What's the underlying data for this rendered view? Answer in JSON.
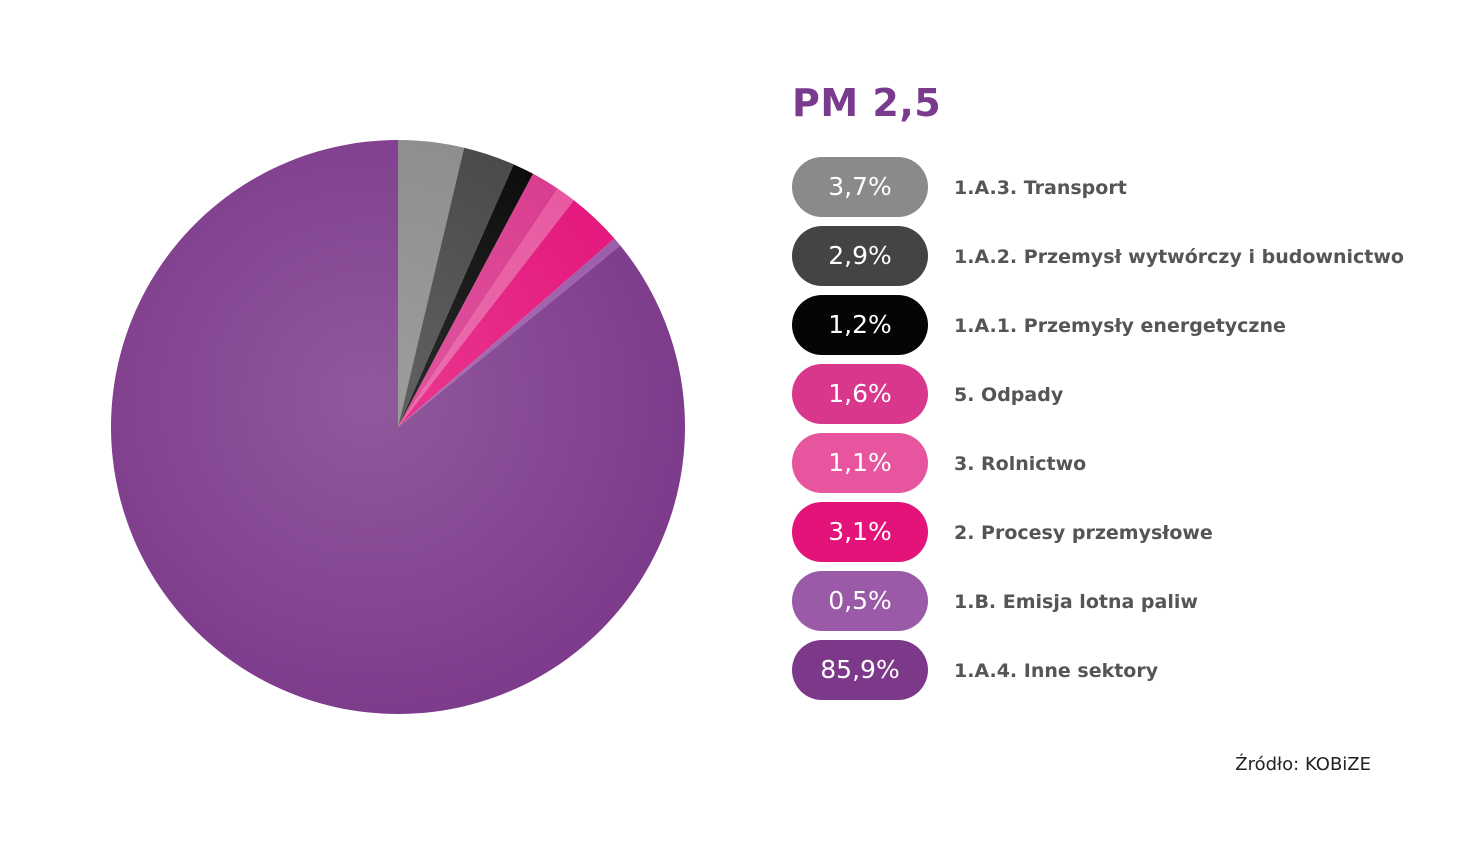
{
  "chart_data": {
    "type": "pie",
    "title": "PM 2,5",
    "title_color": "#7a3a8e",
    "slices": [
      {
        "label": "1.A.3. Transport",
        "value": 3.7,
        "display": "3,7%",
        "color": "#8a8a8a"
      },
      {
        "label": "1.A.2. Przemysł wytwórczy i budownictwo",
        "value": 2.9,
        "display": "2,9%",
        "color": "#444444"
      },
      {
        "label": "1.A.1. Przemysły energetyczne",
        "value": 1.2,
        "display": "1,2%",
        "color": "#050505"
      },
      {
        "label": "5. Odpady",
        "value": 1.6,
        "display": "1,6%",
        "color": "#d9378c"
      },
      {
        "label": "3. Rolnictwo",
        "value": 1.1,
        "display": "1,1%",
        "color": "#e6559e"
      },
      {
        "label": "2. Procesy przemysłowe",
        "value": 3.1,
        "display": "3,1%",
        "color": "#e4137a"
      },
      {
        "label": "1.B. Emisja lotna paliw",
        "value": 0.5,
        "display": "0,5%",
        "color": "#9a5aa8"
      },
      {
        "label": "1.A.4. Inne sektory",
        "value": 85.9,
        "display": "85,9%",
        "color": "#7c398a"
      }
    ],
    "source": "Źródło: KOBiZE"
  }
}
